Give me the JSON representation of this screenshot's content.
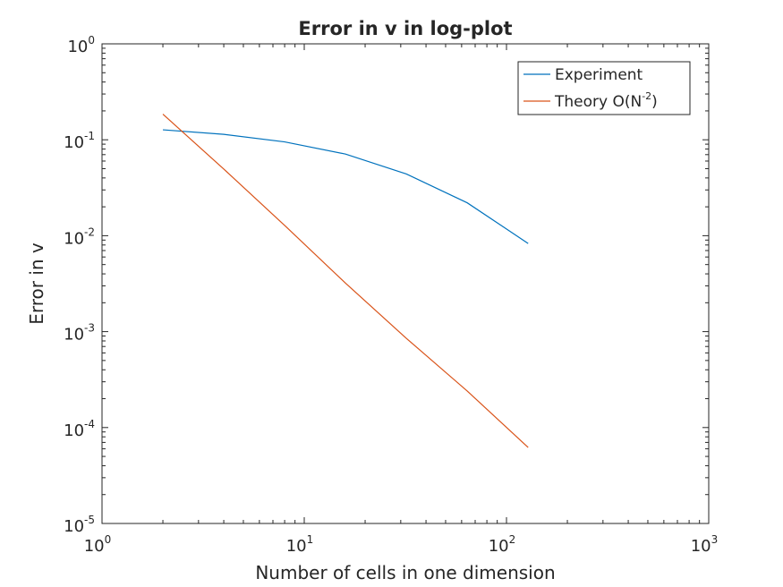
{
  "chart_data": {
    "type": "line",
    "title": "Error in v in log-plot",
    "xlabel": "Number of cells in one dimension",
    "ylabel": "Error in v",
    "xscale": "log",
    "yscale": "log",
    "xlim": [
      1,
      1000
    ],
    "ylim": [
      1e-05,
      1
    ],
    "grid": false,
    "legend_position": "top-right",
    "x_ticks": [
      {
        "base": "10",
        "exp": "0"
      },
      {
        "base": "10",
        "exp": "1"
      },
      {
        "base": "10",
        "exp": "2"
      },
      {
        "base": "10",
        "exp": "3"
      }
    ],
    "y_ticks": [
      {
        "base": "10",
        "exp": "-5"
      },
      {
        "base": "10",
        "exp": "-4"
      },
      {
        "base": "10",
        "exp": "-3"
      },
      {
        "base": "10",
        "exp": "-2"
      },
      {
        "base": "10",
        "exp": "-1"
      },
      {
        "base": "10",
        "exp": "0"
      }
    ],
    "series": [
      {
        "name": "Experiment",
        "color": "#0072bd",
        "x": [
          2,
          4,
          8,
          16,
          32,
          64,
          128
        ],
        "y": [
          0.127,
          0.114,
          0.095,
          0.071,
          0.044,
          0.022,
          0.0083
        ]
      },
      {
        "name": "Theory O(N",
        "name_sup": "-2",
        "name_suffix": ")",
        "color": "#d95319",
        "x": [
          2,
          4,
          8,
          16,
          32,
          64,
          128
        ],
        "y": [
          0.185,
          0.0495,
          0.0128,
          0.0032,
          0.00085,
          0.00024,
          6.2e-05
        ]
      }
    ]
  }
}
